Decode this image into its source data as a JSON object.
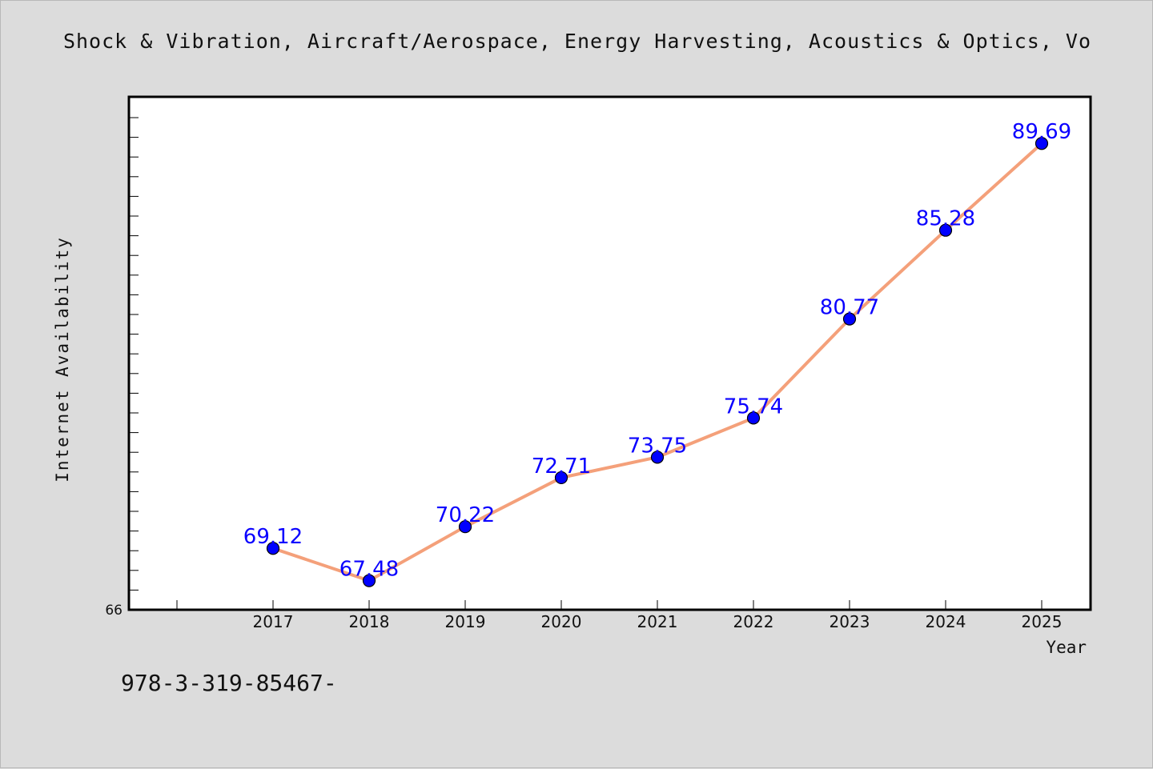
{
  "title": "Shock & Vibration, Aircraft/Aerospace, Energy Harvesting, Acoustics & Optics, Vo",
  "footnote": "978-3-319-85467-",
  "colors": {
    "background": "#dcdcdc",
    "plot_area": "#ffffff",
    "line": "#f4a07a",
    "marker": "#0000ff",
    "data_label": "#0a00ff"
  },
  "chart_data": {
    "type": "line",
    "xlabel": "Year",
    "ylabel": "Internet Availability",
    "categories": [
      "2017",
      "2018",
      "2019",
      "2020",
      "2021",
      "2022",
      "2023",
      "2024",
      "2025"
    ],
    "series": [
      {
        "values": [
          69.12,
          67.48,
          70.22,
          72.71,
          73.75,
          75.74,
          80.77,
          85.28,
          89.69
        ],
        "labels": [
          "69.12",
          "67.48",
          "70.22",
          "72.71",
          "73.75",
          "75.74",
          "80.77",
          "85.28",
          "89.69"
        ]
      }
    ],
    "ylim": [
      66,
      92
    ],
    "y_tick_labels": [
      "66"
    ],
    "y_minor_step": 1,
    "grid": false,
    "legend": "none"
  }
}
